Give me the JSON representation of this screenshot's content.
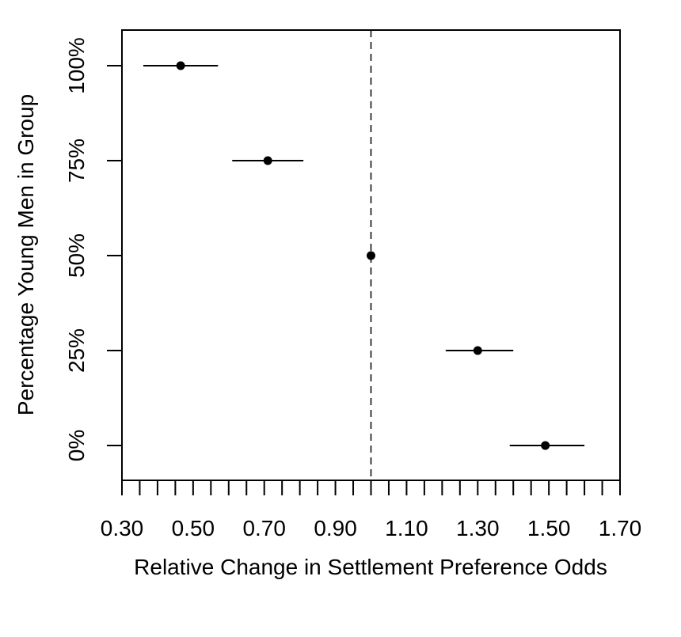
{
  "chart_data": {
    "type": "scatter",
    "title": "",
    "xlabel": "Relative Change in Settlement Preference Odds",
    "ylabel": "Percentage Young Men in Group",
    "xlim": [
      0.3,
      1.7
    ],
    "ylim": [
      -0.1,
      1.1
    ],
    "x_tick_values": [
      0.3,
      0.5,
      0.7,
      0.9,
      1.1,
      1.3,
      1.5,
      1.7
    ],
    "x_tick_labels": [
      "0.30",
      "0.50",
      "0.70",
      "0.90",
      "1.10",
      "1.30",
      "1.50",
      "1.70"
    ],
    "x_minor_tick_step": 0.05,
    "y_tick_values": [
      0,
      0.25,
      0.5,
      0.75,
      1.0
    ],
    "y_tick_labels": [
      "0%",
      "25%",
      "50%",
      "75%",
      "100%"
    ],
    "reference_line": {
      "x": 1.0,
      "style": "dashed"
    },
    "points": [
      {
        "y": 1.0,
        "estimate": 0.465,
        "lower": 0.36,
        "upper": 0.57
      },
      {
        "y": 0.75,
        "estimate": 0.71,
        "lower": 0.61,
        "upper": 0.81
      },
      {
        "y": 0.5,
        "estimate": 1.0,
        "lower": 1.0,
        "upper": 1.0
      },
      {
        "y": 0.25,
        "estimate": 1.3,
        "lower": 1.21,
        "upper": 1.4
      },
      {
        "y": 0.0,
        "estimate": 1.49,
        "lower": 1.39,
        "upper": 1.6
      }
    ],
    "grid": false,
    "legend": "none",
    "colors": {
      "marks": "#000000",
      "background": "#ffffff"
    }
  }
}
